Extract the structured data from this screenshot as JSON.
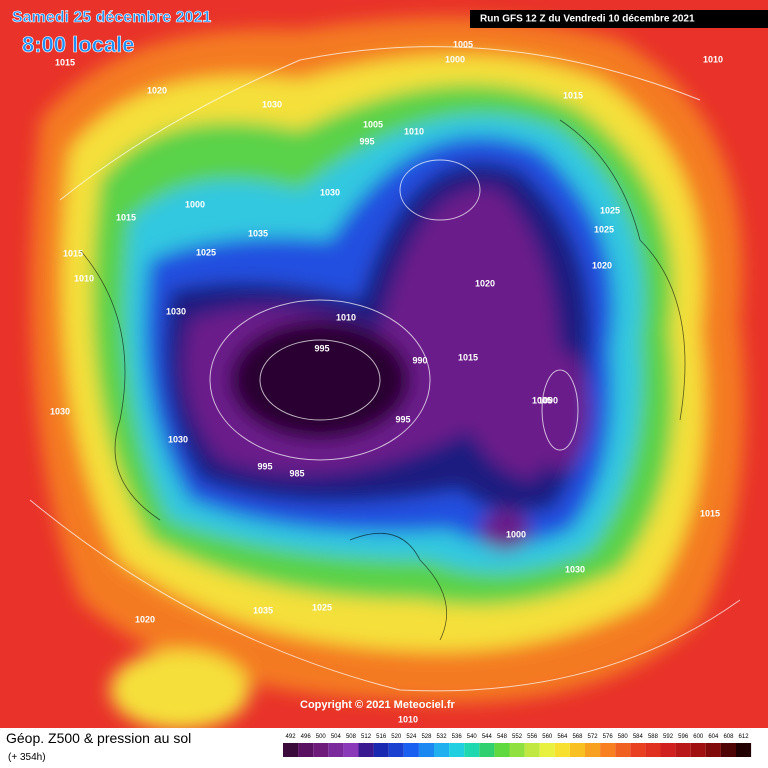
{
  "header": {
    "date": "Samedi 25 décembre 2021",
    "time": "8:00 locale",
    "run": "Run GFS 12 Z du Vendredi 10 décembre 2021"
  },
  "copyright": "Copyright © 2021 Meteociel.fr",
  "footer": {
    "title": "Géop. Z500 & pression au sol",
    "lead": "(+ 354h)"
  },
  "legend": {
    "values": [
      492,
      496,
      500,
      504,
      508,
      512,
      516,
      520,
      524,
      528,
      532,
      536,
      540,
      544,
      548,
      552,
      556,
      560,
      564,
      568,
      572,
      576,
      580,
      584,
      588,
      592,
      596,
      600,
      604,
      608,
      612
    ],
    "colors": [
      "#3a0a3a",
      "#5a1060",
      "#6e1a7a",
      "#7a2a9a",
      "#8a3ab8",
      "#3a1a90",
      "#1a2ab0",
      "#1a40d0",
      "#1a60f0",
      "#1a88f0",
      "#20b0f0",
      "#20d0e0",
      "#20d8b0",
      "#30d070",
      "#60d840",
      "#90e040",
      "#c0e840",
      "#e8f040",
      "#f8e030",
      "#f8c020",
      "#f8a020",
      "#f88020",
      "#f06020",
      "#e84020",
      "#e03020",
      "#d02020",
      "#b81818",
      "#a01010",
      "#800a0a",
      "#500505",
      "#200000"
    ]
  },
  "isobars": [
    1015,
    1020,
    1030,
    1005,
    1000,
    1010,
    1015,
    1005,
    995,
    1000,
    1030,
    1015,
    1035,
    1025,
    1015,
    1010,
    1030,
    995,
    1010,
    990,
    985,
    995,
    1005,
    1000,
    1020,
    1015,
    1025,
    1020,
    1010,
    1030,
    1030,
    1035,
    1025,
    1020,
    1010,
    1015,
    1025,
    1030,
    995,
    1000
  ]
}
